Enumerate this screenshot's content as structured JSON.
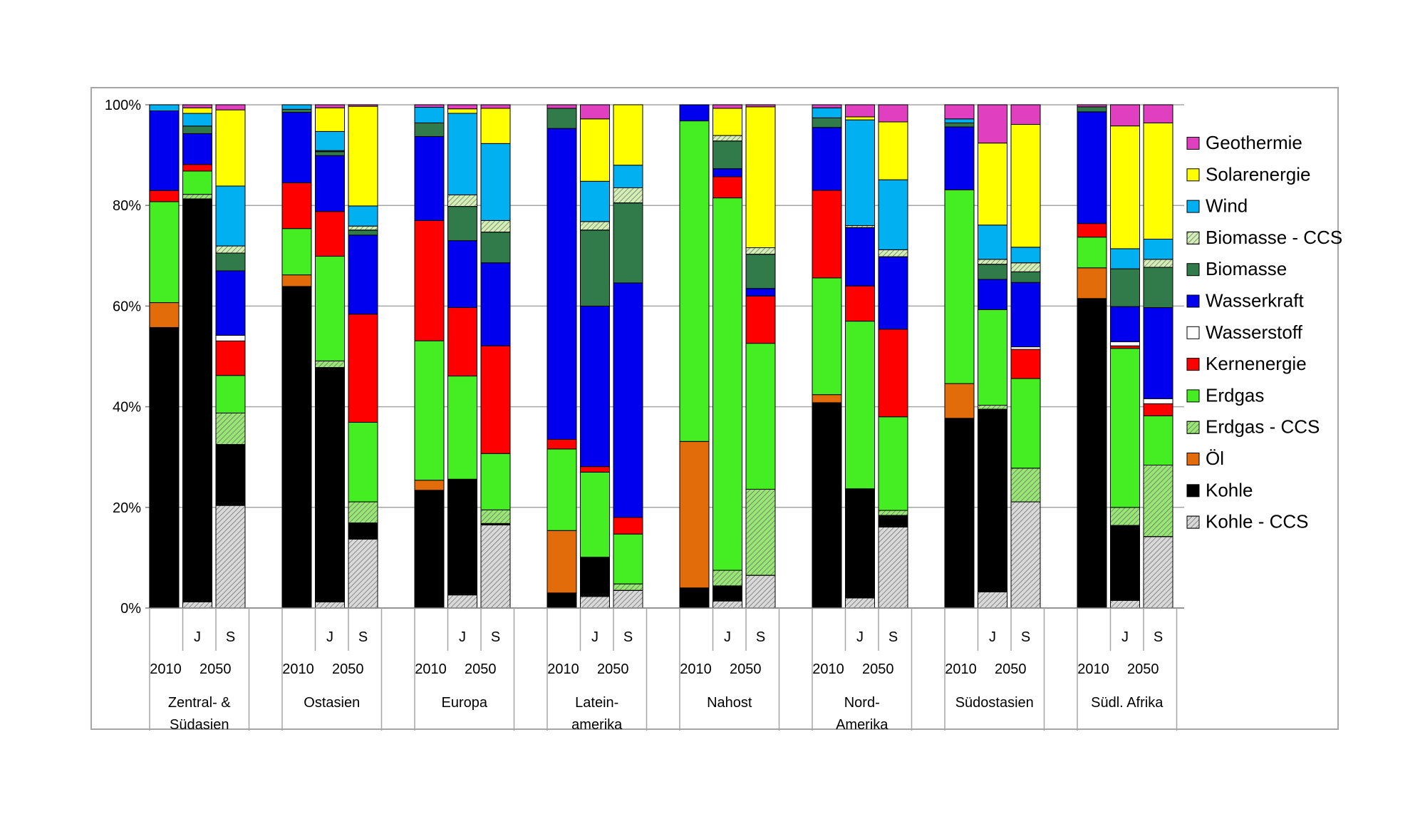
{
  "chart_data": {
    "type": "bar",
    "stacked": true,
    "normalized": true,
    "title": "",
    "xlabel": "",
    "ylabel": "",
    "ylim": [
      0,
      100
    ],
    "y_ticks": [
      "0%",
      "20%",
      "40%",
      "60%",
      "80%",
      "100%"
    ],
    "grid": true,
    "legend_position": "right",
    "year_labels": {
      "base": "2010",
      "future": "2050"
    },
    "scenario_labels": [
      "J",
      "S"
    ],
    "regions": [
      {
        "name": "Zentral- &\nSüdasien",
        "lines": [
          "Zentral- &",
          "Südasien"
        ]
      },
      {
        "name": "Ostasien",
        "lines": [
          "Ostasien"
        ]
      },
      {
        "name": "Europa",
        "lines": [
          "Europa"
        ]
      },
      {
        "name": "Latein-\namerika",
        "lines": [
          "Latein-",
          "amerika"
        ]
      },
      {
        "name": "Nahost",
        "lines": [
          "Nahost"
        ]
      },
      {
        "name": "Nord-\nAmerika",
        "lines": [
          "Nord-",
          "Amerika"
        ]
      },
      {
        "name": "Südostasien",
        "lines": [
          "Südostasien"
        ]
      },
      {
        "name": "Südl. Afrika",
        "lines": [
          "Südl. Afrika"
        ]
      }
    ],
    "series": [
      {
        "key": "kohle_ccs",
        "name": "Kohle - CCS",
        "color": "#d9d9d9",
        "hatch": true
      },
      {
        "key": "kohle",
        "name": "Kohle",
        "color": "#000000"
      },
      {
        "key": "oel",
        "name": "Öl",
        "color": "#e36c0a"
      },
      {
        "key": "erdgas_ccs",
        "name": "Erdgas - CCS",
        "color": "#99e677",
        "hatch": true
      },
      {
        "key": "erdgas",
        "name": "Erdgas",
        "color": "#44ee22"
      },
      {
        "key": "kernenergie",
        "name": "Kernenergie",
        "color": "#ff0000"
      },
      {
        "key": "wasserstoff",
        "name": "Wasserstoff",
        "color": "#ffffff"
      },
      {
        "key": "wasserkraft",
        "name": "Wasserkraft",
        "color": "#0000ee"
      },
      {
        "key": "biomasse",
        "name": "Biomasse",
        "color": "#317a4a"
      },
      {
        "key": "biomasse_ccs",
        "name": "Biomasse - CCS",
        "color": "#d4efb5",
        "hatch": true
      },
      {
        "key": "wind",
        "name": "Wind",
        "color": "#00b0f0"
      },
      {
        "key": "solar",
        "name": "Solarenergie",
        "color": "#ffff00"
      },
      {
        "key": "geothermie",
        "name": "Geothermie",
        "color": "#e040c0"
      }
    ],
    "bars": [
      {
        "region": 0,
        "scenario": "2010",
        "values": [
          0,
          55.3,
          4.9,
          0,
          19.9,
          2.2,
          0,
          15.7,
          0,
          0,
          1.2,
          0,
          0
        ]
      },
      {
        "region": 0,
        "scenario": "J",
        "values": [
          1.2,
          79.7,
          0,
          0.9,
          4.6,
          1.3,
          0,
          6.1,
          1.5,
          0,
          2.5,
          1.1,
          0.6
        ]
      },
      {
        "region": 0,
        "scenario": "S",
        "values": [
          20.2,
          12.0,
          0,
          6.2,
          7.4,
          6.8,
          1.1,
          12.7,
          3.5,
          1.4,
          11.8,
          15.0,
          1.0
        ]
      },
      {
        "region": 1,
        "scenario": "2010",
        "values": [
          0,
          63.9,
          2.3,
          0,
          9.2,
          9.1,
          0,
          14.0,
          0.6,
          0,
          0.9,
          0,
          0
        ]
      },
      {
        "region": 1,
        "scenario": "J",
        "values": [
          1.2,
          46.6,
          0,
          1.3,
          20.8,
          8.9,
          0,
          11.1,
          0.8,
          0.2,
          3.8,
          4.7,
          0.6
        ]
      },
      {
        "region": 1,
        "scenario": "S",
        "values": [
          13.7,
          3.2,
          0,
          4.2,
          15.8,
          21.5,
          0,
          15.7,
          1.0,
          0.8,
          4.0,
          19.8,
          0.3
        ]
      },
      {
        "region": 2,
        "scenario": "2010",
        "values": [
          0,
          23.4,
          2.0,
          0,
          27.7,
          23.9,
          0,
          16.7,
          2.7,
          0,
          3.1,
          0,
          0.5
        ]
      },
      {
        "region": 2,
        "scenario": "J",
        "values": [
          2.6,
          23.0,
          0,
          0,
          20.5,
          13.6,
          0,
          13.3,
          6.8,
          2.3,
          16.2,
          0.9,
          0.8
        ]
      },
      {
        "region": 2,
        "scenario": "S",
        "values": [
          16.5,
          0.3,
          0,
          2.7,
          11.2,
          21.4,
          0,
          16.5,
          6.1,
          2.3,
          15.3,
          7.0,
          0.7
        ]
      },
      {
        "region": 3,
        "scenario": "2010",
        "values": [
          0,
          3.0,
          12.4,
          0,
          16.2,
          1.9,
          0,
          61.8,
          4.0,
          0,
          0,
          0,
          0.7
        ]
      },
      {
        "region": 3,
        "scenario": "J",
        "values": [
          2.3,
          7.8,
          0,
          0,
          16.9,
          1.1,
          0,
          31.9,
          15.1,
          1.7,
          8.0,
          12.4,
          2.8
        ]
      },
      {
        "region": 3,
        "scenario": "S",
        "values": [
          3.5,
          0,
          0,
          1.3,
          9.9,
          3.3,
          0,
          46.6,
          15.9,
          3.0,
          4.5,
          12.0,
          0
        ]
      },
      {
        "region": 4,
        "scenario": "2010",
        "values": [
          0,
          4.0,
          29.1,
          0,
          63.7,
          0,
          0,
          3.2,
          0,
          0,
          0,
          0,
          0
        ]
      },
      {
        "region": 4,
        "scenario": "J",
        "values": [
          1.4,
          3.0,
          0,
          3.1,
          74.0,
          4.2,
          0,
          1.6,
          5.5,
          1.1,
          0,
          5.4,
          0.7
        ]
      },
      {
        "region": 4,
        "scenario": "S",
        "values": [
          6.5,
          0,
          0,
          17.1,
          29.0,
          9.4,
          0,
          1.5,
          6.8,
          1.3,
          0,
          28.0,
          0.4
        ]
      },
      {
        "region": 5,
        "scenario": "2010",
        "values": [
          0,
          40.8,
          1.6,
          0,
          23.2,
          17.4,
          0,
          12.5,
          1.9,
          0,
          2.0,
          0,
          0.6
        ]
      },
      {
        "region": 5,
        "scenario": "J",
        "values": [
          2.0,
          21.7,
          0,
          0,
          33.3,
          7.0,
          0,
          11.6,
          0,
          0.4,
          21.0,
          0.6,
          2.4
        ]
      },
      {
        "region": 5,
        "scenario": "S",
        "values": [
          16.1,
          2.3,
          0,
          1.0,
          18.6,
          17.4,
          0,
          14.4,
          0,
          1.4,
          13.9,
          11.5,
          3.4
        ]
      },
      {
        "region": 6,
        "scenario": "2010",
        "values": [
          0,
          37.7,
          6.9,
          0,
          38.5,
          0,
          0,
          12.5,
          0.8,
          0,
          0.8,
          0,
          2.8
        ]
      },
      {
        "region": 6,
        "scenario": "J",
        "values": [
          3.2,
          36.3,
          0,
          0.8,
          19.0,
          0,
          0,
          6.0,
          3.0,
          1.0,
          6.8,
          16.3,
          7.6
        ]
      },
      {
        "region": 6,
        "scenario": "S",
        "values": [
          21.1,
          0,
          0,
          6.7,
          17.8,
          5.8,
          0.5,
          12.8,
          2.1,
          1.8,
          3.1,
          24.4,
          3.9
        ]
      },
      {
        "region": 7,
        "scenario": "2010",
        "values": [
          0,
          61.5,
          6.1,
          0,
          6.1,
          2.7,
          0,
          22.2,
          1.0,
          0,
          0,
          0,
          0.4
        ]
      },
      {
        "region": 7,
        "scenario": "J",
        "values": [
          1.5,
          14.9,
          0,
          3.6,
          31.6,
          0.5,
          0.8,
          7.0,
          7.5,
          0,
          4.0,
          24.4,
          4.2
        ]
      },
      {
        "region": 7,
        "scenario": "S",
        "values": [
          14.2,
          0,
          0,
          14.2,
          9.8,
          2.4,
          1.0,
          18.1,
          8.0,
          1.6,
          4.0,
          23.1,
          3.6
        ]
      }
    ]
  }
}
